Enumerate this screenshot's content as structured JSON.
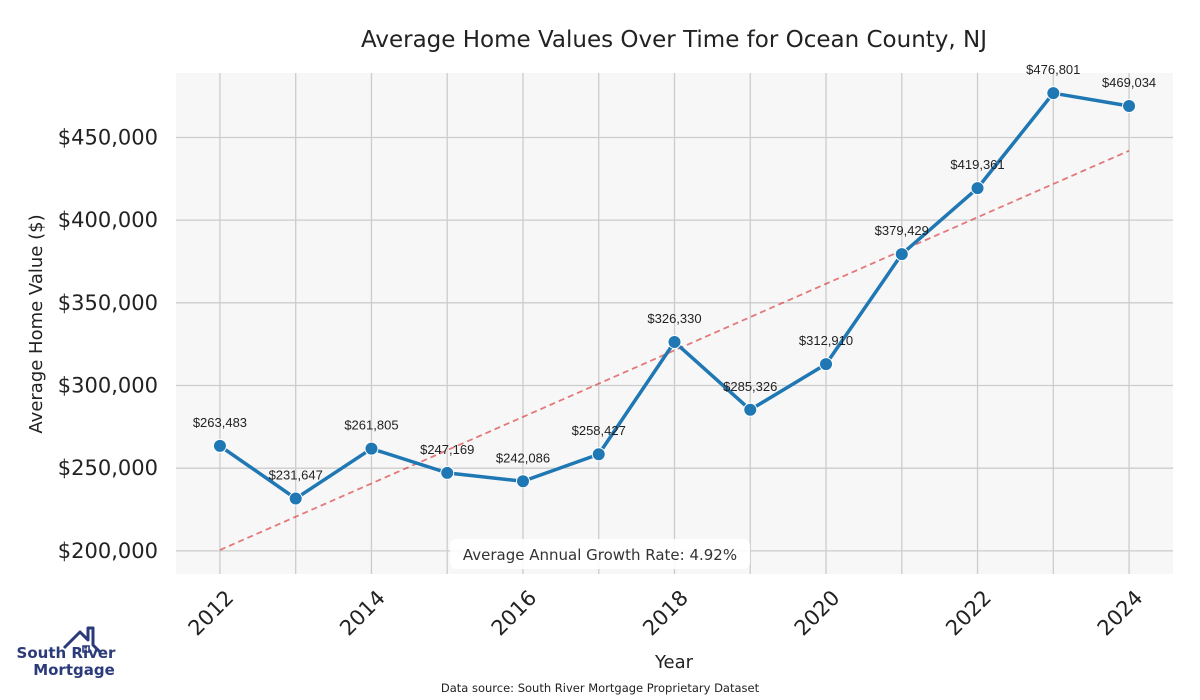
{
  "chart_data": {
    "type": "line",
    "title": "Average Home Values Over Time for Ocean County, NJ",
    "xlabel": "Year",
    "ylabel": "Average Home Value ($)",
    "x": [
      2012,
      2013,
      2014,
      2015,
      2016,
      2017,
      2018,
      2019,
      2020,
      2021,
      2022,
      2023,
      2024
    ],
    "series": [
      {
        "name": "Average Home Value",
        "values": [
          263483,
          231647,
          261805,
          247169,
          242086,
          258427,
          326330,
          285326,
          312910,
          379429,
          419361,
          476801,
          469034
        ],
        "labels": [
          "$263,483",
          "$231,647",
          "$261,805",
          "$247,169",
          "$242,086",
          "$258,427",
          "$326,330",
          "$285,326",
          "$312,910",
          "$379,429",
          "$419,361",
          "$476,801",
          "$469,034"
        ],
        "color": "#1f77b4"
      }
    ],
    "trend_line": {
      "start": [
        2012,
        200500
      ],
      "end": [
        2024,
        442000
      ],
      "color": "#d62728"
    },
    "x_ticks": [
      "2012",
      "2014",
      "2016",
      "2018",
      "2020",
      "2022",
      "2024"
    ],
    "x_tick_values": [
      2012,
      2014,
      2016,
      2018,
      2020,
      2022,
      2024
    ],
    "y_ticks": [
      "$200,000",
      "$250,000",
      "$300,000",
      "$350,000",
      "$400,000",
      "$450,000"
    ],
    "y_tick_values": [
      200000,
      250000,
      300000,
      350000,
      400000,
      450000
    ],
    "xlim": [
      2011.42,
      2024.58
    ],
    "ylim": [
      186000,
      489000
    ],
    "grid": true,
    "annotation": "Average Annual Growth Rate: 4.92%"
  },
  "footer": {
    "source": "Data source: South River Mortgage Proprietary Dataset"
  },
  "logo": {
    "line1": "South River",
    "line2": "Mortgage"
  },
  "colors": {
    "background": "#f7f7f7",
    "grid": "#cccccc",
    "line": "#1f77b4",
    "trend": "#d62728"
  }
}
